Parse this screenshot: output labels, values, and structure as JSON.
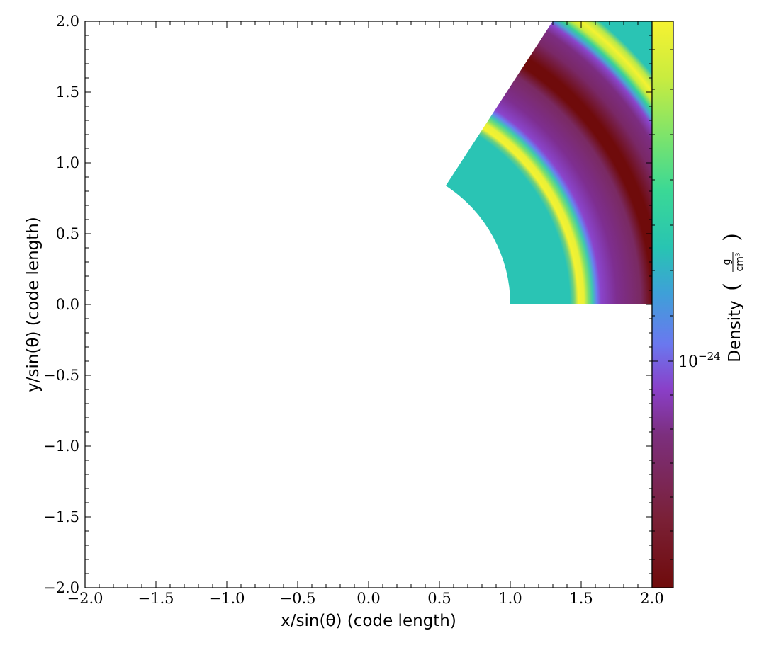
{
  "chart_data": {
    "type": "heatmap",
    "title": "",
    "xlabel": "x/sin(θ)  (code length)",
    "ylabel": "y/sin(θ)  (code length)",
    "xlim": [
      -2.0,
      2.0
    ],
    "ylim": [
      -2.0,
      2.0
    ],
    "x_ticks": [
      -2.0,
      -1.5,
      -1.0,
      -0.5,
      0.0,
      0.5,
      1.0,
      1.5,
      2.0
    ],
    "y_ticks": [
      -2.0,
      -1.5,
      -1.0,
      -0.5,
      0.0,
      0.5,
      1.0,
      1.5,
      2.0
    ],
    "x_tick_labels": [
      "−2.0",
      "−1.5",
      "−1.0",
      "−0.5",
      "0.0",
      "0.5",
      "1.0",
      "1.5",
      "2.0"
    ],
    "y_tick_labels": [
      "−2.0",
      "−1.5",
      "−1.0",
      "−0.5",
      "0.0",
      "0.5",
      "1.0",
      "1.5",
      "2.0"
    ],
    "field_region": {
      "shape": "annular-sector",
      "r_min": 1.0,
      "r_max": 2.83,
      "theta_min_deg": 0,
      "theta_max_deg": 57,
      "note_clip": "clipped to plot limits"
    },
    "radial_profile": [
      {
        "r": 1.0,
        "color": "#2ac4b4"
      },
      {
        "r": 1.42,
        "color": "#2ac4b4"
      },
      {
        "r": 1.45,
        "color": "#6fd07e"
      },
      {
        "r": 1.48,
        "color": "#f4f231"
      },
      {
        "r": 1.52,
        "color": "#e9f037"
      },
      {
        "r": 1.55,
        "color": "#7ee06a"
      },
      {
        "r": 1.58,
        "color": "#3ec9b0"
      },
      {
        "r": 1.61,
        "color": "#6a7ff0"
      },
      {
        "r": 1.64,
        "color": "#8a45cc"
      },
      {
        "r": 1.75,
        "color": "#7e2e90"
      },
      {
        "r": 1.92,
        "color": "#7a2a62"
      },
      {
        "r": 2.0,
        "color": "#6f0b0b"
      },
      {
        "r": 2.07,
        "color": "#6f0b0b"
      },
      {
        "r": 2.2,
        "color": "#7a2866"
      },
      {
        "r": 2.3,
        "color": "#7c2d82"
      },
      {
        "r": 2.36,
        "color": "#8a45cc"
      },
      {
        "r": 2.39,
        "color": "#4f9ed6"
      },
      {
        "r": 2.42,
        "color": "#36d09a"
      },
      {
        "r": 2.46,
        "color": "#c8ec3e"
      },
      {
        "r": 2.5,
        "color": "#f4f231"
      },
      {
        "r": 2.54,
        "color": "#b9e84a"
      },
      {
        "r": 2.58,
        "color": "#2ac4b4"
      },
      {
        "r": 2.83,
        "color": "#2ac4b4"
      }
    ],
    "colorbar": {
      "label": "Density",
      "unit_numerator": "g",
      "unit_denominator": "cm³",
      "tick_label_base": "10",
      "tick_label_exponent": "−24",
      "tick_fraction_from_bottom": 0.4,
      "stops": [
        {
          "pos": 0.0,
          "color": "#6f0b0b"
        },
        {
          "pos": 0.12,
          "color": "#7a2036"
        },
        {
          "pos": 0.27,
          "color": "#7c2f7e"
        },
        {
          "pos": 0.35,
          "color": "#8a3fc8"
        },
        {
          "pos": 0.43,
          "color": "#6a78ef"
        },
        {
          "pos": 0.52,
          "color": "#3ea0d8"
        },
        {
          "pos": 0.6,
          "color": "#28c4b2"
        },
        {
          "pos": 0.7,
          "color": "#3ad896"
        },
        {
          "pos": 0.8,
          "color": "#7fe46a"
        },
        {
          "pos": 0.9,
          "color": "#c9ec3f"
        },
        {
          "pos": 1.0,
          "color": "#f6f231"
        }
      ]
    },
    "grid": false
  }
}
